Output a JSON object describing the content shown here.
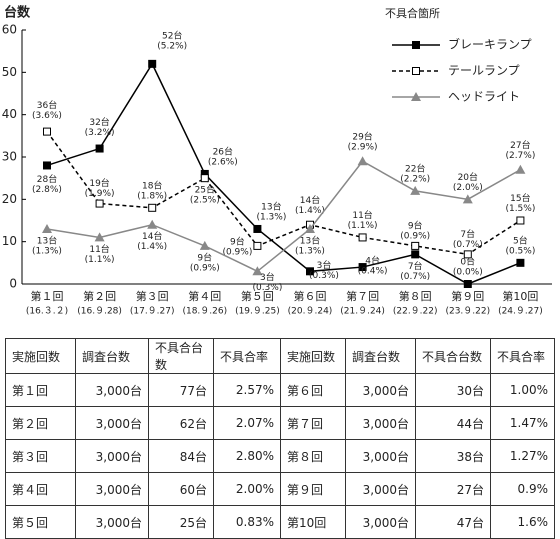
{
  "chart_data": {
    "type": "line",
    "y_label": "台数",
    "categories": [
      "第１回",
      "第２回",
      "第３回",
      "第４回",
      "第５回",
      "第６回",
      "第７回",
      "第８回",
      "第９回",
      "第10回"
    ],
    "dates": [
      "(16.３.２)",
      "(16.９.28)",
      "(17.９.27)",
      "(18.９.26)",
      "(19.９.25)",
      "(20.９.24)",
      "(21.９.24)",
      "(22.９.22)",
      "(23.９.22)",
      "(24.９.27)"
    ],
    "ylim": [
      0,
      60
    ],
    "yticks": [
      0,
      10,
      20,
      30,
      40,
      50,
      60
    ],
    "legend_title": "不具合箇所",
    "series": [
      {
        "name": "ブレーキランプ",
        "color": "#000000",
        "line_style": "solid",
        "marker": "filled-square",
        "values": [
          28,
          32,
          52,
          26,
          13,
          3,
          4,
          7,
          0,
          5
        ],
        "value_labels": [
          "28台",
          "32台",
          "52台",
          "26台",
          "13台",
          "3台",
          "4台",
          "7台",
          "0台",
          "5台"
        ],
        "rate_labels": [
          "(2.8%)",
          "(3.2%)",
          "(5.2%)",
          "(2.6%)",
          "(1.3%)",
          "(0.3%)",
          "(0.4%)",
          "(0.7%)",
          "(0.0%)",
          "(0.5%)"
        ]
      },
      {
        "name": "テールランプ",
        "color": "#000000",
        "line_style": "dashed",
        "marker": "open-square",
        "values": [
          36,
          19,
          18,
          25,
          9,
          14,
          11,
          9,
          7,
          15
        ],
        "value_labels": [
          "36台",
          "19台",
          "18台",
          "25台",
          "9台",
          "14台",
          "11台",
          "9台",
          "7台",
          "15台"
        ],
        "rate_labels": [
          "(3.6%)",
          "(1.9%)",
          "(1.8%)",
          "(2.5%)",
          "(0.9%)",
          "(1.4%)",
          "(1.1%)",
          "(0.9%)",
          "(0.7%)",
          "(1.5%)"
        ]
      },
      {
        "name": "ヘッドライト",
        "color": "#888888",
        "line_style": "solid",
        "marker": "triangle",
        "values": [
          13,
          11,
          14,
          9,
          3,
          13,
          29,
          22,
          20,
          27
        ],
        "value_labels": [
          "13台",
          "11台",
          "14台",
          "9台",
          "3台",
          "13台",
          "29台",
          "22台",
          "20台",
          "27台"
        ],
        "rate_labels": [
          "(1.3%)",
          "(1.1%)",
          "(1.4%)",
          "(0.9%)",
          "(0.3%)",
          "(1.3%)",
          "(2.9%)",
          "(2.2%)",
          "(2.0%)",
          "(2.7%)"
        ]
      }
    ]
  },
  "table": {
    "header": [
      "実施回数",
      "調査台数",
      "不具合台数",
      "不具合率",
      "実施回数",
      "調査台数",
      "不具合台数",
      "不具合率"
    ],
    "rows": [
      [
        "第１回",
        "3,000台",
        "77台",
        "2.57%",
        "第６回",
        "3,000台",
        "30台",
        "1.00%"
      ],
      [
        "第２回",
        "3,000台",
        "62台",
        "2.07%",
        "第７回",
        "3,000台",
        "44台",
        "1.47%"
      ],
      [
        "第３回",
        "3,000台",
        "84台",
        "2.80%",
        "第８回",
        "3,000台",
        "38台",
        "1.27%"
      ],
      [
        "第４回",
        "3,000台",
        "60台",
        "2.00%",
        "第９回",
        "3,000台",
        "27台",
        "0.9%"
      ],
      [
        "第５回",
        "3,000台",
        "25台",
        "0.83%",
        "第10回",
        "3,000台",
        "47台",
        "1.6%"
      ]
    ]
  }
}
